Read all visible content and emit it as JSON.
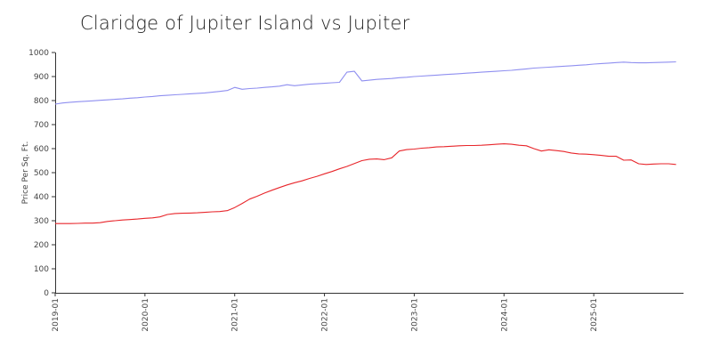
{
  "chart_data": {
    "type": "line",
    "title": "Claridge of Jupiter Island vs Jupiter",
    "xlabel": "",
    "ylabel": "Price Per Sq. Ft.",
    "ylim": [
      0,
      1000
    ],
    "yticks": [
      0,
      100,
      200,
      300,
      400,
      500,
      600,
      700,
      800,
      900,
      1000
    ],
    "xlim": [
      "2019-01",
      "2025-12"
    ],
    "xticks": [
      "2019-01",
      "2020-01",
      "2021-01",
      "2022-01",
      "2023-01",
      "2024-01",
      "2025-01"
    ],
    "grid": false,
    "legend": "none",
    "series": [
      {
        "color": "#8f8ff0",
        "points": [
          [
            "2019-01",
            785
          ],
          [
            "2019-02",
            790
          ],
          [
            "2019-03",
            793
          ],
          [
            "2019-04",
            795
          ],
          [
            "2019-05",
            797
          ],
          [
            "2019-06",
            799
          ],
          [
            "2019-07",
            801
          ],
          [
            "2019-08",
            803
          ],
          [
            "2019-09",
            805
          ],
          [
            "2019-10",
            807
          ],
          [
            "2019-11",
            810
          ],
          [
            "2019-12",
            812
          ],
          [
            "2020-01",
            815
          ],
          [
            "2020-02",
            817
          ],
          [
            "2020-03",
            820
          ],
          [
            "2020-04",
            822
          ],
          [
            "2020-05",
            824
          ],
          [
            "2020-06",
            826
          ],
          [
            "2020-07",
            828
          ],
          [
            "2020-08",
            830
          ],
          [
            "2020-09",
            832
          ],
          [
            "2020-10",
            835
          ],
          [
            "2020-11",
            838
          ],
          [
            "2020-12",
            842
          ],
          [
            "2021-01",
            855
          ],
          [
            "2021-02",
            847
          ],
          [
            "2021-03",
            850
          ],
          [
            "2021-04",
            852
          ],
          [
            "2021-05",
            855
          ],
          [
            "2021-06",
            857
          ],
          [
            "2021-07",
            860
          ],
          [
            "2021-08",
            866
          ],
          [
            "2021-09",
            862
          ],
          [
            "2021-10",
            865
          ],
          [
            "2021-11",
            868
          ],
          [
            "2021-12",
            870
          ],
          [
            "2022-01",
            872
          ],
          [
            "2022-02",
            874
          ],
          [
            "2022-03",
            876
          ],
          [
            "2022-04",
            918
          ],
          [
            "2022-05",
            922
          ],
          [
            "2022-06",
            882
          ],
          [
            "2022-07",
            885
          ],
          [
            "2022-08",
            888
          ],
          [
            "2022-09",
            890
          ],
          [
            "2022-10",
            892
          ],
          [
            "2022-11",
            895
          ],
          [
            "2022-12",
            897
          ],
          [
            "2023-01",
            900
          ],
          [
            "2023-02",
            902
          ],
          [
            "2023-03",
            904
          ],
          [
            "2023-04",
            906
          ],
          [
            "2023-05",
            908
          ],
          [
            "2023-06",
            910
          ],
          [
            "2023-07",
            912
          ],
          [
            "2023-08",
            914
          ],
          [
            "2023-09",
            916
          ],
          [
            "2023-10",
            918
          ],
          [
            "2023-11",
            920
          ],
          [
            "2023-12",
            922
          ],
          [
            "2024-01",
            924
          ],
          [
            "2024-02",
            926
          ],
          [
            "2024-03",
            929
          ],
          [
            "2024-04",
            932
          ],
          [
            "2024-05",
            935
          ],
          [
            "2024-06",
            937
          ],
          [
            "2024-07",
            939
          ],
          [
            "2024-08",
            941
          ],
          [
            "2024-09",
            943
          ],
          [
            "2024-10",
            945
          ],
          [
            "2024-11",
            947
          ],
          [
            "2024-12",
            949
          ],
          [
            "2025-01",
            952
          ],
          [
            "2025-02",
            954
          ],
          [
            "2025-03",
            956
          ],
          [
            "2025-04",
            958
          ],
          [
            "2025-05",
            960
          ],
          [
            "2025-06",
            958
          ],
          [
            "2025-07",
            957
          ],
          [
            "2025-08",
            957
          ],
          [
            "2025-09",
            958
          ],
          [
            "2025-10",
            959
          ],
          [
            "2025-11",
            960
          ],
          [
            "2025-12",
            961
          ]
        ]
      },
      {
        "color": "#e8262b",
        "points": [
          [
            "2019-01",
            288
          ],
          [
            "2019-02",
            288
          ],
          [
            "2019-03",
            288
          ],
          [
            "2019-04",
            289
          ],
          [
            "2019-05",
            290
          ],
          [
            "2019-06",
            290
          ],
          [
            "2019-07",
            292
          ],
          [
            "2019-08",
            297
          ],
          [
            "2019-09",
            300
          ],
          [
            "2019-10",
            303
          ],
          [
            "2019-11",
            305
          ],
          [
            "2019-12",
            307
          ],
          [
            "2020-01",
            310
          ],
          [
            "2020-02",
            312
          ],
          [
            "2020-03",
            316
          ],
          [
            "2020-04",
            326
          ],
          [
            "2020-05",
            330
          ],
          [
            "2020-06",
            331
          ],
          [
            "2020-07",
            332
          ],
          [
            "2020-08",
            333
          ],
          [
            "2020-09",
            335
          ],
          [
            "2020-10",
            337
          ],
          [
            "2020-11",
            338
          ],
          [
            "2020-12",
            342
          ],
          [
            "2021-01",
            355
          ],
          [
            "2021-02",
            372
          ],
          [
            "2021-03",
            390
          ],
          [
            "2021-04",
            402
          ],
          [
            "2021-05",
            415
          ],
          [
            "2021-06",
            427
          ],
          [
            "2021-07",
            438
          ],
          [
            "2021-08",
            449
          ],
          [
            "2021-09",
            458
          ],
          [
            "2021-10",
            466
          ],
          [
            "2021-11",
            476
          ],
          [
            "2021-12",
            485
          ],
          [
            "2022-01",
            495
          ],
          [
            "2022-02",
            505
          ],
          [
            "2022-03",
            516
          ],
          [
            "2022-04",
            526
          ],
          [
            "2022-05",
            538
          ],
          [
            "2022-06",
            550
          ],
          [
            "2022-07",
            556
          ],
          [
            "2022-08",
            557
          ],
          [
            "2022-09",
            554
          ],
          [
            "2022-10",
            562
          ],
          [
            "2022-11",
            590
          ],
          [
            "2022-12",
            596
          ],
          [
            "2023-01",
            598
          ],
          [
            "2023-02",
            602
          ],
          [
            "2023-03",
            604
          ],
          [
            "2023-04",
            607
          ],
          [
            "2023-05",
            608
          ],
          [
            "2023-06",
            610
          ],
          [
            "2023-07",
            612
          ],
          [
            "2023-08",
            613
          ],
          [
            "2023-09",
            613
          ],
          [
            "2023-10",
            614
          ],
          [
            "2023-11",
            616
          ],
          [
            "2023-12",
            618
          ],
          [
            "2024-01",
            620
          ],
          [
            "2024-02",
            618
          ],
          [
            "2024-03",
            614
          ],
          [
            "2024-04",
            612
          ],
          [
            "2024-05",
            600
          ],
          [
            "2024-06",
            590
          ],
          [
            "2024-07",
            595
          ],
          [
            "2024-08",
            592
          ],
          [
            "2024-09",
            588
          ],
          [
            "2024-10",
            582
          ],
          [
            "2024-11",
            578
          ],
          [
            "2024-12",
            577
          ],
          [
            "2025-01",
            575
          ],
          [
            "2025-02",
            572
          ],
          [
            "2025-03",
            568
          ],
          [
            "2025-04",
            568
          ],
          [
            "2025-05",
            552
          ],
          [
            "2025-06",
            553
          ],
          [
            "2025-07",
            537
          ],
          [
            "2025-08",
            534
          ],
          [
            "2025-09",
            536
          ],
          [
            "2025-10",
            537
          ],
          [
            "2025-11",
            537
          ],
          [
            "2025-12",
            534
          ]
        ]
      }
    ]
  }
}
